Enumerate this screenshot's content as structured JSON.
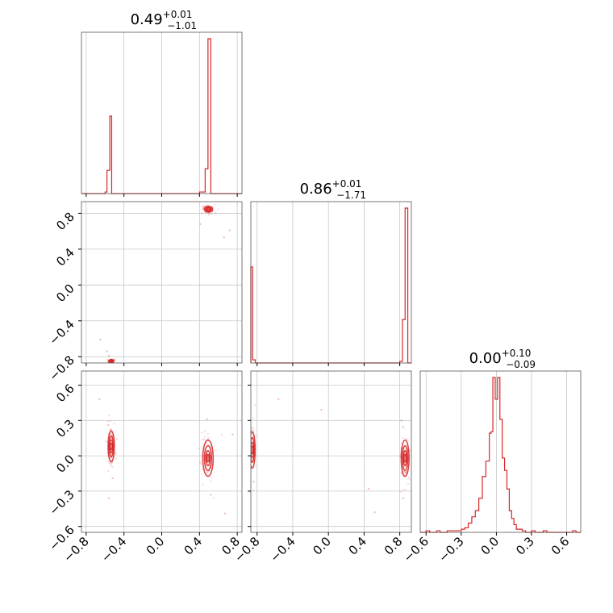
{
  "chart_data": {
    "type": "corner",
    "color": "#d62728",
    "grid": true,
    "parameters": [
      {
        "index": 0,
        "title": {
          "value": "0.49",
          "plus": "+0.01",
          "minus": "−1.01"
        },
        "range": [
          -0.85,
          0.85
        ],
        "tick_values": [
          -0.8,
          -0.4,
          0.0,
          0.4,
          0.8
        ],
        "tick_labels": [
          "−0.8",
          "−0.4",
          "0.0",
          "0.4",
          "0.8"
        ],
        "histogram": {
          "bins": [
            {
              "x": -0.62,
              "h": 0.0
            },
            {
              "x": -0.6,
              "h": 0.01
            },
            {
              "x": -0.58,
              "h": 0.15
            },
            {
              "x": -0.55,
              "h": 0.5
            },
            {
              "x": -0.53,
              "h": 0.0
            },
            {
              "x": 0.4,
              "h": 0.01
            },
            {
              "x": 0.46,
              "h": 0.16
            },
            {
              "x": 0.49,
              "h": 1.0
            },
            {
              "x": 0.52,
              "h": 0.0
            }
          ]
        }
      },
      {
        "index": 1,
        "title": {
          "value": "0.86",
          "plus": "+0.01",
          "minus": "−1.71"
        },
        "range": [
          -0.87,
          0.93
        ],
        "tick_values": [
          -0.8,
          -0.4,
          0.0,
          0.4,
          0.8
        ],
        "tick_labels": [
          "−0.8",
          "−0.4",
          "0.0",
          "0.4",
          "0.8"
        ],
        "histogram": {
          "bins": [
            {
              "x": -0.87,
              "h": 0.62
            },
            {
              "x": -0.85,
              "h": 0.02
            },
            {
              "x": -0.82,
              "h": 0.0
            },
            {
              "x": 0.8,
              "h": 0.01
            },
            {
              "x": 0.83,
              "h": 0.28
            },
            {
              "x": 0.86,
              "h": 1.0
            },
            {
              "x": 0.89,
              "h": 0.0
            }
          ]
        }
      },
      {
        "index": 2,
        "title": {
          "value": "0.00",
          "plus": "+0.10",
          "minus": "−0.09"
        },
        "range": [
          -0.65,
          0.72
        ],
        "tick_values": [
          -0.6,
          -0.3,
          0.0,
          0.3,
          0.6
        ],
        "tick_labels": [
          "−0.6",
          "−0.3",
          "0.0",
          "0.3",
          "0.6"
        ],
        "histogram": {
          "bins": [
            {
              "x": -0.63,
              "h": 0.0
            },
            {
              "x": -0.6,
              "h": 0.01
            },
            {
              "x": -0.57,
              "h": 0.0
            },
            {
              "x": -0.54,
              "h": 0.0
            },
            {
              "x": -0.51,
              "h": 0.01
            },
            {
              "x": -0.48,
              "h": 0.0
            },
            {
              "x": -0.45,
              "h": 0.0
            },
            {
              "x": -0.42,
              "h": 0.01
            },
            {
              "x": -0.39,
              "h": 0.01
            },
            {
              "x": -0.3,
              "h": 0.02
            },
            {
              "x": -0.27,
              "h": 0.03
            },
            {
              "x": -0.24,
              "h": 0.06
            },
            {
              "x": -0.21,
              "h": 0.1
            },
            {
              "x": -0.18,
              "h": 0.14
            },
            {
              "x": -0.15,
              "h": 0.22
            },
            {
              "x": -0.12,
              "h": 0.36
            },
            {
              "x": -0.09,
              "h": 0.46
            },
            {
              "x": -0.06,
              "h": 0.64
            },
            {
              "x": -0.045,
              "h": 0.65
            },
            {
              "x": -0.03,
              "h": 1.0
            },
            {
              "x": -0.01,
              "h": 0.86
            },
            {
              "x": 0.01,
              "h": 1.0
            },
            {
              "x": 0.03,
              "h": 0.73
            },
            {
              "x": 0.05,
              "h": 0.48
            },
            {
              "x": 0.07,
              "h": 0.4
            },
            {
              "x": 0.09,
              "h": 0.28
            },
            {
              "x": 0.11,
              "h": 0.14
            },
            {
              "x": 0.13,
              "h": 0.09
            },
            {
              "x": 0.15,
              "h": 0.05
            },
            {
              "x": 0.17,
              "h": 0.02
            },
            {
              "x": 0.22,
              "h": 0.01
            },
            {
              "x": 0.25,
              "h": 0.0
            },
            {
              "x": 0.3,
              "h": 0.01
            },
            {
              "x": 0.33,
              "h": 0.0
            },
            {
              "x": 0.4,
              "h": 0.01
            },
            {
              "x": 0.43,
              "h": 0.0
            },
            {
              "x": 0.65,
              "h": 0.01
            },
            {
              "x": 0.68,
              "h": 0.0
            }
          ]
        }
      }
    ],
    "pair_panels": [
      {
        "x_param": 0,
        "y_param": 1,
        "clusters": [
          {
            "cx": -0.535,
            "cy": -0.85,
            "sx": 0.012,
            "sy": 0.008
          },
          {
            "cx": 0.495,
            "cy": 0.845,
            "sx": 0.02,
            "sy": 0.015
          }
        ],
        "scatter": [
          {
            "x": -0.65,
            "y": -0.61
          },
          {
            "x": -0.58,
            "y": -0.74
          },
          {
            "x": 0.41,
            "y": 0.68
          },
          {
            "x": 0.72,
            "y": 0.61
          },
          {
            "x": 0.66,
            "y": 0.53
          },
          {
            "x": -0.56,
            "y": -0.79
          }
        ]
      },
      {
        "x_param": 0,
        "y_param": 2,
        "clusters": [
          {
            "cx": -0.535,
            "cy": 0.08,
            "sx": 0.015,
            "sy": 0.06
          },
          {
            "cx": 0.49,
            "cy": -0.02,
            "sx": 0.025,
            "sy": 0.07
          }
        ],
        "scatter": [
          {
            "x": -0.66,
            "y": 0.48
          },
          {
            "x": -0.56,
            "y": -0.36
          },
          {
            "x": -0.54,
            "y": 0.22
          },
          {
            "x": 0.48,
            "y": 0.31
          },
          {
            "x": 0.52,
            "y": -0.33
          },
          {
            "x": 0.67,
            "y": -0.49
          },
          {
            "x": 0.75,
            "y": 0.18
          },
          {
            "x": -0.52,
            "y": -0.19
          }
        ]
      },
      {
        "x_param": 1,
        "y_param": 2,
        "clusters": [
          {
            "cx": -0.855,
            "cy": 0.05,
            "sx": 0.015,
            "sy": 0.07
          },
          {
            "cx": 0.86,
            "cy": -0.02,
            "sx": 0.02,
            "sy": 0.07
          }
        ],
        "scatter": [
          {
            "x": -0.56,
            "y": 0.48
          },
          {
            "x": -0.08,
            "y": 0.39
          },
          {
            "x": 0.52,
            "y": -0.48
          },
          {
            "x": 0.45,
            "y": -0.28
          },
          {
            "x": 0.82,
            "y": 0.3
          },
          {
            "x": 0.84,
            "y": -0.36
          },
          {
            "x": -0.84,
            "y": -0.22
          }
        ]
      }
    ]
  }
}
